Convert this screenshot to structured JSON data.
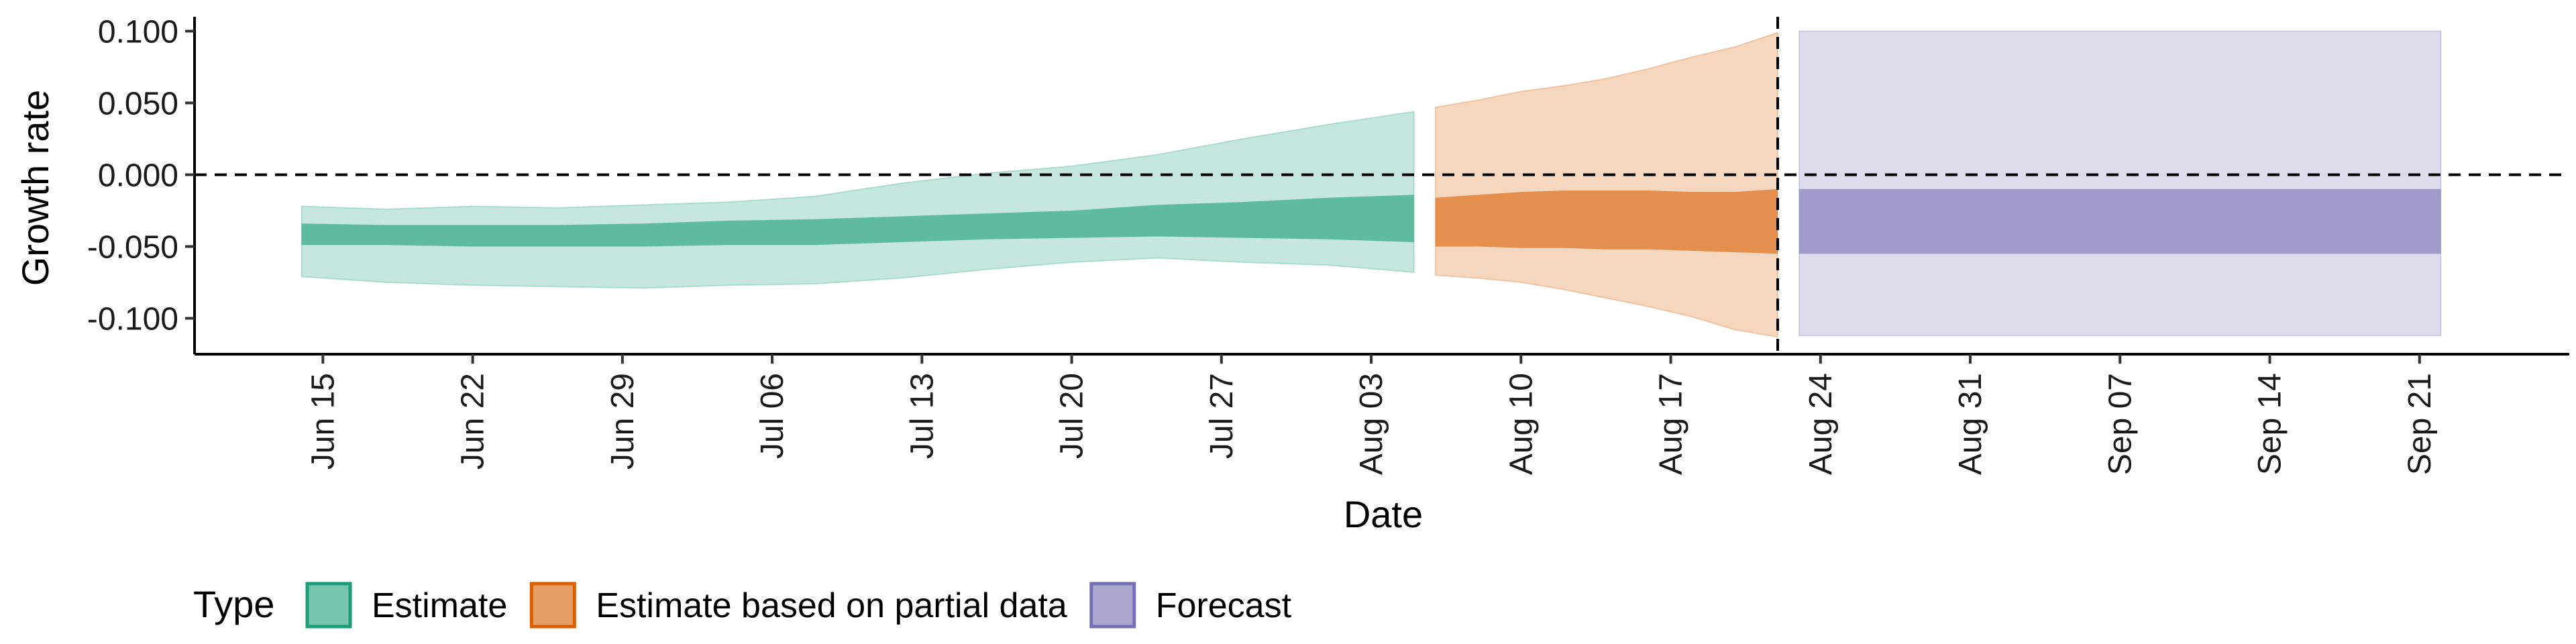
{
  "chart_data": {
    "type": "area",
    "title": "",
    "xlabel": "Date",
    "ylabel": "Growth rate",
    "xlim": [
      "2021-06-09",
      "2021-09-28"
    ],
    "ylim": [
      -0.125,
      0.11
    ],
    "y_ticks": [
      -0.1,
      -0.05,
      0.0,
      0.05,
      0.1
    ],
    "y_tick_labels": [
      "-0.100",
      "-0.050",
      "0.000",
      "0.050",
      "0.100"
    ],
    "x_ticks": [
      "2021-06-15",
      "2021-06-22",
      "2021-06-29",
      "2021-07-06",
      "2021-07-13",
      "2021-07-20",
      "2021-07-27",
      "2021-08-03",
      "2021-08-10",
      "2021-08-17",
      "2021-08-24",
      "2021-08-31",
      "2021-09-07",
      "2021-09-14",
      "2021-09-21"
    ],
    "x_tick_labels": [
      "Jun 15",
      "Jun 22",
      "Jun 29",
      "Jul 06",
      "Jul 13",
      "Jul 20",
      "Jul 27",
      "Aug 03",
      "Aug 10",
      "Aug 17",
      "Aug 24",
      "Aug 31",
      "Sep 07",
      "Sep 14",
      "Sep 21"
    ],
    "hline": {
      "y": 0.0,
      "style": "dashed"
    },
    "vline": {
      "x": "2021-08-22",
      "style": "dashed"
    },
    "grid": false,
    "legend": {
      "title": "Type",
      "position": "bottom-left"
    },
    "series": [
      {
        "name": "Estimate",
        "color": "#1b9e77",
        "x": [
          "2021-06-14",
          "2021-06-18",
          "2021-06-22",
          "2021-06-26",
          "2021-06-30",
          "2021-07-04",
          "2021-07-08",
          "2021-07-12",
          "2021-07-16",
          "2021-07-20",
          "2021-07-24",
          "2021-07-28",
          "2021-08-01",
          "2021-08-05"
        ],
        "outer_lower": [
          -0.071,
          -0.075,
          -0.077,
          -0.078,
          -0.079,
          -0.077,
          -0.076,
          -0.072,
          -0.066,
          -0.061,
          -0.058,
          -0.061,
          -0.063,
          -0.068
        ],
        "outer_upper": [
          -0.022,
          -0.024,
          -0.022,
          -0.023,
          -0.021,
          -0.019,
          -0.015,
          -0.006,
          0.001,
          0.006,
          0.014,
          0.025,
          0.035,
          0.044
        ],
        "inner_lower": [
          -0.049,
          -0.049,
          -0.05,
          -0.05,
          -0.05,
          -0.049,
          -0.049,
          -0.047,
          -0.045,
          -0.044,
          -0.043,
          -0.044,
          -0.045,
          -0.047
        ],
        "inner_upper": [
          -0.034,
          -0.035,
          -0.035,
          -0.035,
          -0.034,
          -0.032,
          -0.031,
          -0.029,
          -0.027,
          -0.025,
          -0.021,
          -0.019,
          -0.016,
          -0.014
        ]
      },
      {
        "name": "Estimate based on partial data",
        "color": "#d95f02",
        "x": [
          "2021-08-06",
          "2021-08-08",
          "2021-08-10",
          "2021-08-12",
          "2021-08-14",
          "2021-08-16",
          "2021-08-18",
          "2021-08-20",
          "2021-08-22"
        ],
        "outer_lower": [
          -0.07,
          -0.072,
          -0.075,
          -0.08,
          -0.086,
          -0.092,
          -0.099,
          -0.108,
          -0.113
        ],
        "outer_upper": [
          0.047,
          0.052,
          0.058,
          0.062,
          0.067,
          0.074,
          0.082,
          0.089,
          0.099
        ],
        "inner_lower": [
          -0.05,
          -0.05,
          -0.051,
          -0.051,
          -0.052,
          -0.052,
          -0.053,
          -0.054,
          -0.055
        ],
        "inner_upper": [
          -0.016,
          -0.014,
          -0.012,
          -0.011,
          -0.011,
          -0.011,
          -0.012,
          -0.012,
          -0.01
        ]
      },
      {
        "name": "Forecast",
        "color": "#7570b3",
        "x": [
          "2021-08-23",
          "2021-09-22"
        ],
        "outer_lower": [
          -0.112,
          -0.112
        ],
        "outer_upper": [
          0.1,
          0.1
        ],
        "inner_lower": [
          -0.055,
          -0.055
        ],
        "inner_upper": [
          -0.01,
          -0.01
        ]
      }
    ]
  }
}
